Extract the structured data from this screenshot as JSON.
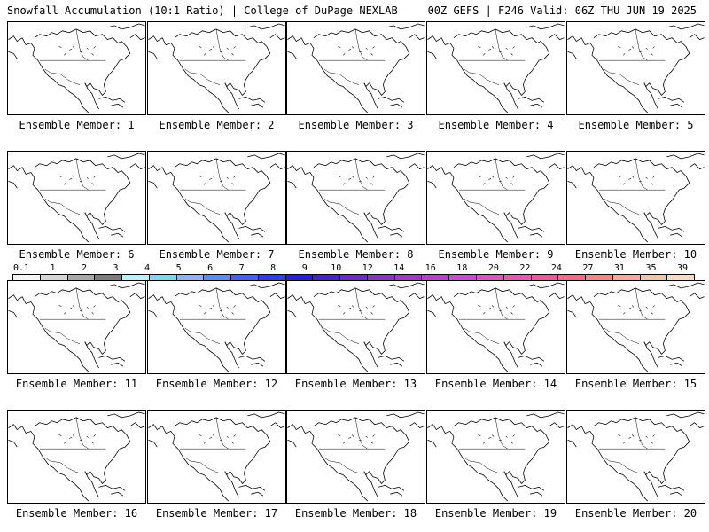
{
  "header": {
    "left_title": "Snowfall Accumulation (10:1 Ratio) | College of DuPage NEXLAB",
    "right_title": "00Z GEFS | F246 Valid: 06Z THU JUN 19 2025"
  },
  "colors": {
    "border": "#000000",
    "background": "#ffffff"
  },
  "legend": {
    "ticks": [
      "0.1",
      "1",
      "2",
      "3",
      "4",
      "5",
      "6",
      "7",
      "8",
      "9",
      "10",
      "12",
      "14",
      "16",
      "18",
      "20",
      "22",
      "24",
      "27",
      "31",
      "35",
      "39"
    ],
    "swatches": [
      "#f4f4f4",
      "#d6d6d6",
      "#a8a8a8",
      "#7d7d7d",
      "#b8f2f6",
      "#7fd6ef",
      "#8cb6f0",
      "#5a8ef0",
      "#3f63ee",
      "#2e3fe6",
      "#2b1fd6",
      "#4626c2",
      "#6a2ec0",
      "#8a36c0",
      "#a03cc4",
      "#b544c8",
      "#c74ed0",
      "#d658c0",
      "#e05cae",
      "#e85c98",
      "#ee6c88",
      "#f08a88",
      "#f4a8a0",
      "#f6c2b0",
      "#f8dac8"
    ]
  },
  "panels": [
    {
      "label": "Ensemble Member: 1"
    },
    {
      "label": "Ensemble Member: 2"
    },
    {
      "label": "Ensemble Member: 3"
    },
    {
      "label": "Ensemble Member: 4"
    },
    {
      "label": "Ensemble Member: 5"
    },
    {
      "label": "Ensemble Member: 6"
    },
    {
      "label": "Ensemble Member: 7"
    },
    {
      "label": "Ensemble Member: 8"
    },
    {
      "label": "Ensemble Member: 9"
    },
    {
      "label": "Ensemble Member: 10"
    },
    {
      "label": "Ensemble Member: 11"
    },
    {
      "label": "Ensemble Member: 12"
    },
    {
      "label": "Ensemble Member: 13"
    },
    {
      "label": "Ensemble Member: 14"
    },
    {
      "label": "Ensemble Member: 15"
    },
    {
      "label": "Ensemble Member: 16"
    },
    {
      "label": "Ensemble Member: 17"
    },
    {
      "label": "Ensemble Member: 18"
    },
    {
      "label": "Ensemble Member: 19"
    },
    {
      "label": "Ensemble Member: 20"
    }
  ]
}
